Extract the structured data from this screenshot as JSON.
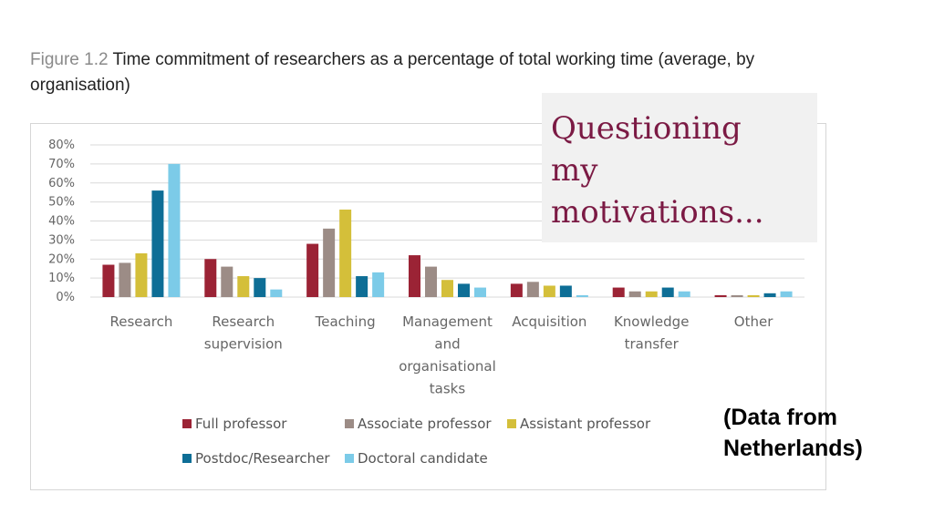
{
  "figure": {
    "number": "Figure 1.2",
    "title": "Time commitment of researchers as a percentage of total working time (average, by organisation)"
  },
  "overlay": {
    "text": "Questioning\nmy\nmotivations..."
  },
  "note": {
    "text": "(Data from\nNetherlands)"
  },
  "chart_data": {
    "type": "bar",
    "categories": [
      [
        "Research"
      ],
      [
        "Research",
        "supervision"
      ],
      [
        "Teaching"
      ],
      [
        "Management",
        "and",
        "organisational",
        "tasks"
      ],
      [
        "Acquisition"
      ],
      [
        "Knowledge",
        "transfer"
      ],
      [
        "Other"
      ]
    ],
    "yticks": [
      "0%",
      "10%",
      "20%",
      "30%",
      "40%",
      "50%",
      "60%",
      "70%",
      "80%"
    ],
    "ylim": [
      0,
      80
    ],
    "grid": true,
    "legend_position": "bottom",
    "series": [
      {
        "name": "Full professor",
        "color": "#9b2335",
        "values": [
          17,
          20,
          28,
          22,
          7,
          5,
          1
        ]
      },
      {
        "name": "Associate professor",
        "color": "#9c8c86",
        "values": [
          18,
          16,
          36,
          16,
          8,
          3,
          1
        ]
      },
      {
        "name": "Assistant professor",
        "color": "#d4bf3a",
        "values": [
          23,
          11,
          46,
          9,
          6,
          3,
          1
        ]
      },
      {
        "name": "Postdoc/Researcher",
        "color": "#0e6e96",
        "values": [
          56,
          10,
          11,
          7,
          6,
          5,
          2
        ]
      },
      {
        "name": "Doctoral candidate",
        "color": "#7ccbe8",
        "values": [
          70,
          4,
          13,
          5,
          1,
          3,
          3
        ]
      }
    ]
  }
}
